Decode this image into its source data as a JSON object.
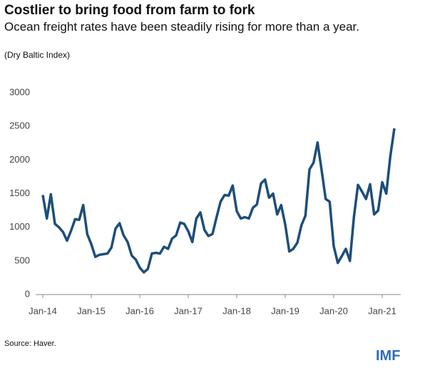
{
  "chart_data": {
    "type": "line",
    "title": "Costlier to bring food from farm to fork",
    "subtitle": "Ocean freight rates have been steadily rising for more than a year.",
    "note": "(Dry Baltic Index)",
    "source": "Source: Haver.",
    "logo": "IMF",
    "color": "#1d4e79",
    "categories": [
      "Jan-14",
      null,
      null,
      null,
      null,
      null,
      null,
      null,
      null,
      null,
      null,
      null,
      "Jan-15",
      null,
      null,
      null,
      null,
      null,
      null,
      null,
      null,
      null,
      null,
      null,
      "Jan-16",
      null,
      null,
      null,
      null,
      null,
      null,
      null,
      null,
      null,
      null,
      null,
      "Jan-17",
      null,
      null,
      null,
      null,
      null,
      null,
      null,
      null,
      null,
      null,
      null,
      "Jan-18",
      null,
      null,
      null,
      null,
      null,
      null,
      null,
      null,
      null,
      null,
      null,
      "Jan-19",
      null,
      null,
      null,
      null,
      null,
      null,
      null,
      null,
      null,
      null,
      null,
      "Jan-20",
      null,
      null,
      null,
      null,
      null,
      null,
      null,
      null,
      null,
      null,
      null,
      "Jan-21",
      null,
      null,
      null
    ],
    "values": [
      1480,
      1130,
      1490,
      1050,
      1000,
      930,
      800,
      950,
      1120,
      1110,
      1330,
      900,
      750,
      560,
      590,
      600,
      610,
      700,
      980,
      1060,
      880,
      780,
      580,
      520,
      400,
      330,
      380,
      610,
      620,
      610,
      710,
      680,
      830,
      880,
      1070,
      1050,
      940,
      780,
      1130,
      1220,
      960,
      870,
      900,
      1150,
      1380,
      1480,
      1470,
      1620,
      1240,
      1130,
      1150,
      1130,
      1290,
      1340,
      1650,
      1710,
      1440,
      1500,
      1190,
      1330,
      1040,
      640,
      680,
      770,
      1030,
      1170,
      1860,
      1960,
      2260,
      1850,
      1420,
      1380,
      720,
      470,
      570,
      680,
      500,
      1150,
      1630,
      1530,
      1420,
      1640,
      1190,
      1250,
      1670,
      1500,
      2050,
      2470
    ],
    "ylim": [
      0,
      3000
    ],
    "yticks": [
      0,
      500,
      1000,
      1500,
      2000,
      2500,
      3000
    ]
  }
}
